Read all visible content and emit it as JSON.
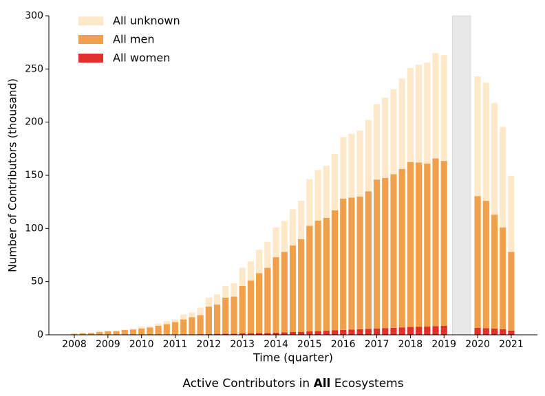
{
  "chart_data": {
    "type": "bar",
    "stacked": true,
    "title": [
      "Active Contributors in ",
      "All",
      " Ecosystems"
    ],
    "x_label": "Time (quarter)",
    "y_label": "Number of Contributors (thousand)",
    "legend": "upper left",
    "ylim": [
      0,
      300
    ],
    "yticks": [
      0,
      50,
      100,
      150,
      200,
      250,
      300
    ],
    "categories": [
      "2008",
      null,
      null,
      null,
      "2009",
      null,
      null,
      null,
      "2010",
      null,
      null,
      null,
      "2011",
      null,
      null,
      null,
      "2012",
      null,
      null,
      null,
      "2013",
      null,
      null,
      null,
      "2014",
      null,
      null,
      null,
      "2015",
      null,
      null,
      null,
      "2016",
      null,
      null,
      null,
      "2017",
      null,
      null,
      null,
      "2018",
      null,
      null,
      null,
      "2019",
      null,
      null,
      null,
      "2020",
      null,
      null,
      null,
      "2021"
    ],
    "series": [
      {
        "name": "All women",
        "color": "#e0302a",
        "values": [
          0.05,
          0.05,
          0.1,
          0.1,
          0.1,
          0.1,
          0.15,
          0.15,
          0.2,
          0.2,
          0.3,
          0.3,
          0.4,
          0.5,
          0.5,
          0.6,
          0.8,
          0.9,
          1.0,
          1.1,
          1.3,
          1.5,
          1.6,
          1.8,
          2.0,
          2.3,
          2.6,
          2.8,
          3.2,
          3.5,
          3.8,
          4.2,
          4.6,
          5.0,
          5.2,
          5.6,
          6.0,
          6.3,
          6.6,
          7.0,
          7.4,
          7.6,
          7.8,
          8.2,
          8.4,
          null,
          null,
          null,
          6.5,
          6.2,
          5.8,
          5.2,
          4.0
        ]
      },
      {
        "name": "All men",
        "color": "#f0a04b",
        "values": [
          0.95,
          1.45,
          1.7,
          2.5,
          3.1,
          3.3,
          4.35,
          4.85,
          5.8,
          6.6,
          8.2,
          9.7,
          11.6,
          14.0,
          16.0,
          17.9,
          25.7,
          27.6,
          34.0,
          34.9,
          44.7,
          49.5,
          56.4,
          61.2,
          71.0,
          75.7,
          81.4,
          87.2,
          99.3,
          104.0,
          106.2,
          112.8,
          123.4,
          124.0,
          124.8,
          129.4,
          140.0,
          141.2,
          144.4,
          149.0,
          155.1,
          154.4,
          153.2,
          157.8,
          155.1,
          null,
          null,
          null,
          124.0,
          119.8,
          107.2,
          95.8,
          74.0
        ]
      },
      {
        "name": "All unknown",
        "color": "#fde9c9",
        "values": [
          0.3,
          0.5,
          0.2,
          0.6,
          0.7,
          0.6,
          0.5,
          0.8,
          1.8,
          1.2,
          2.0,
          3.0,
          2.5,
          4.5,
          4.5,
          7.0,
          8.5,
          9.5,
          11.0,
          12.5,
          17.0,
          18.0,
          22.0,
          24.5,
          28.0,
          29.0,
          34.0,
          36.0,
          44.0,
          47.5,
          49.0,
          53.0,
          58.0,
          60.0,
          62.0,
          67.0,
          71.0,
          75.5,
          80.0,
          85.0,
          88.5,
          92.0,
          95.0,
          99.0,
          99.5,
          null,
          null,
          null,
          112.5,
          111.0,
          105.0,
          94.5,
          71.5
        ]
      }
    ]
  }
}
